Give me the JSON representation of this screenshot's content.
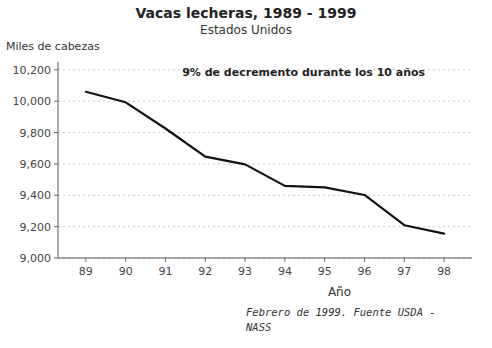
{
  "chart_data": {
    "type": "line",
    "title": "Vacas lecheras, 1989 - 1999",
    "subtitle": "Estados Unidos",
    "y_label": "Miles de cabezas",
    "x_label": "Año",
    "annotation": "9% de decremento durante los 10 años",
    "footnote": [
      "Febrero de 1999.  Fuente USDA -",
      "NASS"
    ],
    "x": [
      89,
      90,
      91,
      92,
      93,
      94,
      95,
      96,
      97,
      98
    ],
    "values": [
      10060,
      9993,
      9826,
      9647,
      9597,
      9460,
      9450,
      9402,
      9209,
      9155
    ],
    "color": "#111111",
    "xlim": [
      88.3,
      98.7
    ],
    "xticks": [
      89,
      90,
      91,
      92,
      93,
      94,
      95,
      96,
      97,
      98
    ],
    "ylim": [
      9000,
      10250
    ],
    "yticks": [
      {
        "value": 9000,
        "label": "9,000"
      },
      {
        "value": 9200,
        "label": "9,200"
      },
      {
        "value": 9400,
        "label": "9,400"
      },
      {
        "value": 9600,
        "label": "9,600"
      },
      {
        "value": 9800,
        "label": "9,800"
      },
      {
        "value": 10000,
        "label": "10,000"
      },
      {
        "value": 10200,
        "label": "10,200"
      }
    ],
    "grid": true
  }
}
